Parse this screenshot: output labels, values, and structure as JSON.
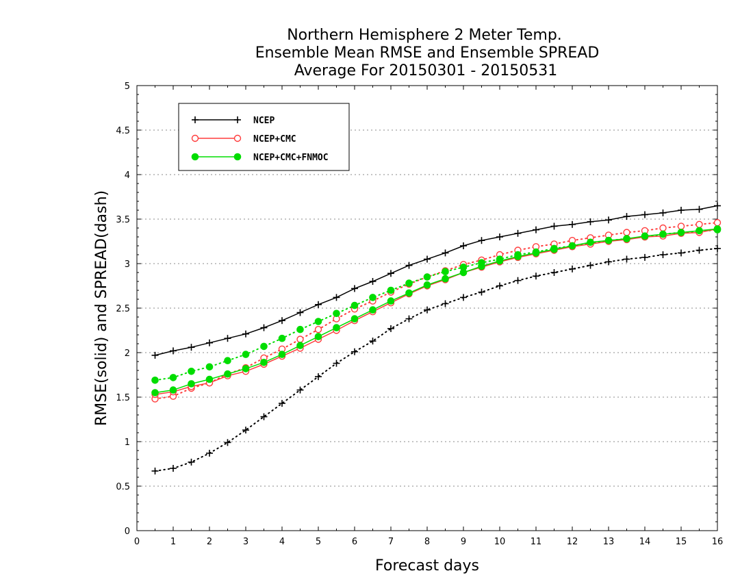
{
  "chart_data": {
    "type": "line",
    "title": [
      "Northern Hemisphere 2 Meter Temp.",
      "Ensemble Mean RMSE and Ensemble SPREAD",
      "Average For 20150301 - 20150531"
    ],
    "xlabel": "Forecast days",
    "ylabel": "RMSE(solid) and SPREAD(dash)",
    "xlim": [
      0,
      16
    ],
    "ylim": [
      0,
      5
    ],
    "xticks": [
      "0",
      "1",
      "2",
      "3",
      "4",
      "5",
      "6",
      "7",
      "8",
      "9",
      "10",
      "11",
      "12",
      "13",
      "14",
      "15",
      "16"
    ],
    "yticks": [
      "0",
      "0.5",
      "1",
      "1.5",
      "2",
      "2.5",
      "3",
      "3.5",
      "4",
      "4.5",
      "5"
    ],
    "grid": "horizontal dotted",
    "legend_position": "top-left",
    "x": [
      0.5,
      1,
      1.5,
      2,
      2.5,
      3,
      3.5,
      4,
      4.5,
      5,
      5.5,
      6,
      6.5,
      7,
      7.5,
      8,
      8.5,
      9,
      9.5,
      10,
      10.5,
      11,
      11.5,
      12,
      12.5,
      13,
      13.5,
      14,
      14.5,
      15,
      15.5,
      16
    ],
    "series": [
      {
        "name": "NCEP",
        "color": "#000000",
        "marker": "plus",
        "rmse": [
          1.97,
          2.02,
          2.06,
          2.11,
          2.16,
          2.21,
          2.28,
          2.36,
          2.45,
          2.54,
          2.62,
          2.72,
          2.8,
          2.89,
          2.98,
          3.05,
          3.12,
          3.2,
          3.26,
          3.3,
          3.34,
          3.38,
          3.42,
          3.44,
          3.47,
          3.49,
          3.53,
          3.55,
          3.57,
          3.6,
          3.61,
          3.65
        ],
        "spread": [
          0.67,
          0.7,
          0.77,
          0.87,
          0.99,
          1.13,
          1.28,
          1.43,
          1.58,
          1.73,
          1.88,
          2.01,
          2.13,
          2.27,
          2.38,
          2.48,
          2.55,
          2.62,
          2.68,
          2.75,
          2.81,
          2.86,
          2.9,
          2.94,
          2.98,
          3.02,
          3.05,
          3.07,
          3.1,
          3.12,
          3.15,
          3.17
        ]
      },
      {
        "name": "NCEP+CMC",
        "color": "#ff3b3b",
        "marker": "open-circle",
        "rmse": [
          1.53,
          1.56,
          1.62,
          1.66,
          1.74,
          1.79,
          1.87,
          1.96,
          2.05,
          2.15,
          2.25,
          2.36,
          2.46,
          2.56,
          2.66,
          2.75,
          2.82,
          2.9,
          2.96,
          3.02,
          3.07,
          3.11,
          3.15,
          3.19,
          3.22,
          3.25,
          3.27,
          3.3,
          3.31,
          3.34,
          3.35,
          3.39
        ],
        "spread": [
          1.48,
          1.51,
          1.6,
          1.66,
          1.76,
          1.83,
          1.94,
          2.04,
          2.15,
          2.26,
          2.38,
          2.49,
          2.58,
          2.68,
          2.77,
          2.85,
          2.92,
          2.99,
          3.04,
          3.1,
          3.15,
          3.19,
          3.22,
          3.26,
          3.29,
          3.32,
          3.35,
          3.37,
          3.4,
          3.42,
          3.44,
          3.46
        ]
      },
      {
        "name": "NCEP+CMC+FNMOC",
        "color": "#00dd00",
        "marker": "filled-circle",
        "rmse": [
          1.55,
          1.58,
          1.65,
          1.7,
          1.76,
          1.82,
          1.89,
          1.98,
          2.08,
          2.18,
          2.28,
          2.38,
          2.48,
          2.58,
          2.67,
          2.76,
          2.83,
          2.9,
          2.97,
          3.03,
          3.08,
          3.12,
          3.16,
          3.2,
          3.24,
          3.26,
          3.28,
          3.31,
          3.33,
          3.35,
          3.37,
          3.39
        ],
        "spread": [
          1.69,
          1.72,
          1.79,
          1.84,
          1.91,
          1.98,
          2.07,
          2.16,
          2.26,
          2.35,
          2.44,
          2.53,
          2.62,
          2.7,
          2.78,
          2.85,
          2.91,
          2.96,
          3.01,
          3.05,
          3.1,
          3.13,
          3.17,
          3.2,
          3.23,
          3.26,
          3.28,
          3.3,
          3.33,
          3.35,
          3.36,
          3.38
        ]
      }
    ]
  }
}
